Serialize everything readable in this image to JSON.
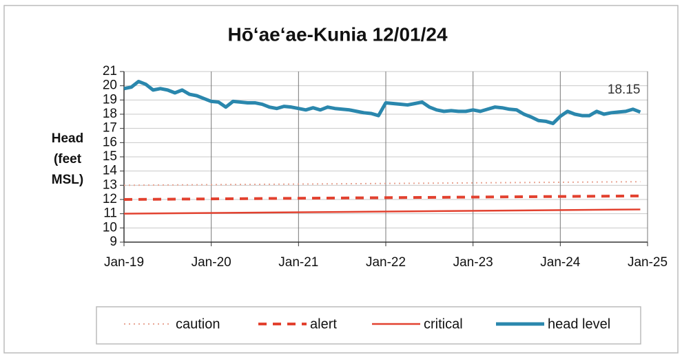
{
  "chart_data": {
    "type": "line",
    "title": "Hōʻaeʻae-Kunia 12/01/24",
    "y_label_lines": [
      "Head",
      "(feet",
      "MSL)"
    ],
    "xlim": [
      "2019-01",
      "2025-01"
    ],
    "xticks": [
      {
        "value": "2019-01",
        "label": "Jan-19"
      },
      {
        "value": "2020-01",
        "label": "Jan-20"
      },
      {
        "value": "2021-01",
        "label": "Jan-21"
      },
      {
        "value": "2022-01",
        "label": "Jan-22"
      },
      {
        "value": "2023-01",
        "label": "Jan-23"
      },
      {
        "value": "2024-01",
        "label": "Jan-24"
      },
      {
        "value": "2025-01",
        "label": "Jan-25"
      }
    ],
    "ylim": [
      9,
      21
    ],
    "yticks": [
      9,
      10,
      11,
      12,
      13,
      14,
      15,
      16,
      17,
      18,
      19,
      20,
      21
    ],
    "grid": true,
    "legend": "bottom",
    "series": [
      {
        "name": "caution",
        "color": "#e9a593",
        "style": "dotted",
        "x": [
          "2019-01",
          "2024-12"
        ],
        "values": [
          13,
          13.25
        ]
      },
      {
        "name": "alert",
        "color": "#e2412f",
        "style": "dashed",
        "x": [
          "2019-01",
          "2024-12"
        ],
        "values": [
          12,
          12.25
        ]
      },
      {
        "name": "critical",
        "color": "#e2412f",
        "style": "solid",
        "x": [
          "2019-01",
          "2024-12"
        ],
        "values": [
          11,
          11.3
        ]
      },
      {
        "name": "head level",
        "color": "#2a87ad",
        "style": "thick",
        "x": [
          "2019-01",
          "2019-02",
          "2019-03",
          "2019-04",
          "2019-05",
          "2019-06",
          "2019-07",
          "2019-08",
          "2019-09",
          "2019-10",
          "2019-11",
          "2019-12",
          "2020-01",
          "2020-02",
          "2020-03",
          "2020-04",
          "2020-05",
          "2020-06",
          "2020-07",
          "2020-08",
          "2020-09",
          "2020-10",
          "2020-11",
          "2020-12",
          "2021-01",
          "2021-02",
          "2021-03",
          "2021-04",
          "2021-05",
          "2021-06",
          "2021-07",
          "2021-08",
          "2021-09",
          "2021-10",
          "2021-11",
          "2021-12",
          "2022-01",
          "2022-02",
          "2022-03",
          "2022-04",
          "2022-05",
          "2022-06",
          "2022-07",
          "2022-08",
          "2022-09",
          "2022-10",
          "2022-11",
          "2022-12",
          "2023-01",
          "2023-02",
          "2023-03",
          "2023-04",
          "2023-05",
          "2023-06",
          "2023-07",
          "2023-08",
          "2023-09",
          "2023-10",
          "2023-11",
          "2023-12",
          "2024-01",
          "2024-02",
          "2024-03",
          "2024-04",
          "2024-05",
          "2024-06",
          "2024-07",
          "2024-08",
          "2024-09",
          "2024-10",
          "2024-11",
          "2024-12"
        ],
        "values": [
          19.8,
          19.9,
          20.3,
          20.1,
          19.7,
          19.8,
          19.7,
          19.5,
          19.7,
          19.4,
          19.3,
          19.1,
          18.9,
          18.85,
          18.5,
          18.9,
          18.85,
          18.8,
          18.8,
          18.7,
          18.5,
          18.4,
          18.55,
          18.5,
          18.4,
          18.3,
          18.45,
          18.3,
          18.5,
          18.4,
          18.35,
          18.3,
          18.2,
          18.1,
          18.05,
          17.9,
          18.8,
          18.75,
          18.7,
          18.65,
          18.75,
          18.85,
          18.5,
          18.3,
          18.2,
          18.25,
          18.2,
          18.2,
          18.3,
          18.2,
          18.35,
          18.5,
          18.45,
          18.35,
          18.3,
          18.0,
          17.8,
          17.55,
          17.5,
          17.35,
          17.85,
          18.2,
          18.0,
          17.9,
          17.9,
          18.2,
          18.0,
          18.1,
          18.15,
          18.2,
          18.35,
          18.15
        ],
        "value_labels": {
          "71": "18.15"
        }
      }
    ]
  }
}
